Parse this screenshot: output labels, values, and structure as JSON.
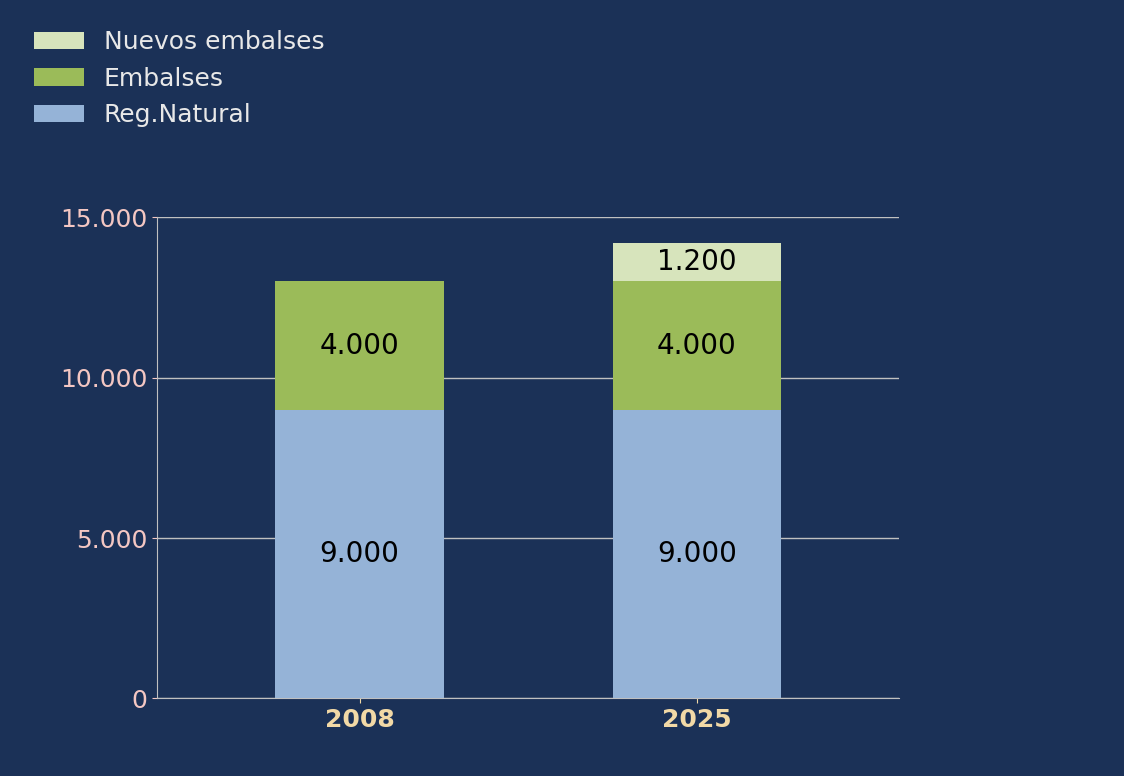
{
  "chart_data": {
    "type": "bar",
    "stacked": true,
    "data_labels": true,
    "grid": true,
    "legend": "upper left",
    "categories": [
      "2008",
      "2025"
    ],
    "series": [
      {
        "name": "Reg.Natural",
        "color": "#95b3d7",
        "values": [
          9000,
          9000
        ],
        "value_labels": [
          "9.000",
          "9.000"
        ]
      },
      {
        "name": "Embalses",
        "color": "#9bbb59",
        "values": [
          4000,
          4000
        ],
        "value_labels": [
          "4.000",
          "4.000"
        ]
      },
      {
        "name": "Nuevos embalses",
        "color": "#d7e4bc",
        "values": [
          0,
          1200
        ],
        "value_labels": [
          null,
          "1.200"
        ]
      }
    ],
    "ylim": [
      0,
      15000
    ],
    "yticks": [
      0,
      {
        "value": 5000,
        "label": "5.000"
      },
      {
        "value": 10000,
        "label": "10.000"
      },
      {
        "value": 15000,
        "label": "15.000"
      }
    ]
  }
}
